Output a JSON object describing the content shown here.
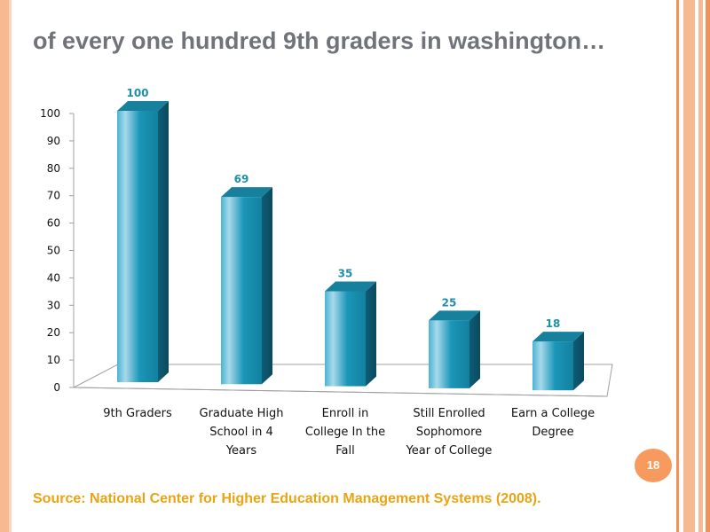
{
  "slide": {
    "title": "of every one hundred 9th graders in washington…",
    "page_number": "18",
    "source": "Source: National Center for Higher Education Management Systems (2008).",
    "colors": {
      "accent_stripe": "#f7b992",
      "accent_stripe_dark": "#f2915a",
      "bar": "#1a96b8",
      "title": "#70737a",
      "source": "#e8a413",
      "badge": "#f79a5e"
    }
  },
  "chart_data": {
    "type": "bar",
    "categories": [
      "9th Graders",
      "Graduate High School in 4 Years",
      "Enroll in College In the Fall",
      "Still Enrolled Sophomore Year of College",
      "Earn a College Degree"
    ],
    "values": [
      100,
      69,
      35,
      25,
      18
    ],
    "title": "",
    "xlabel": "",
    "ylabel": "",
    "ylim": [
      0,
      100
    ],
    "yticks": [
      0,
      10,
      20,
      30,
      40,
      50,
      60,
      70,
      80,
      90,
      100
    ],
    "grid": false,
    "legend": "none",
    "style": "3d-column"
  }
}
